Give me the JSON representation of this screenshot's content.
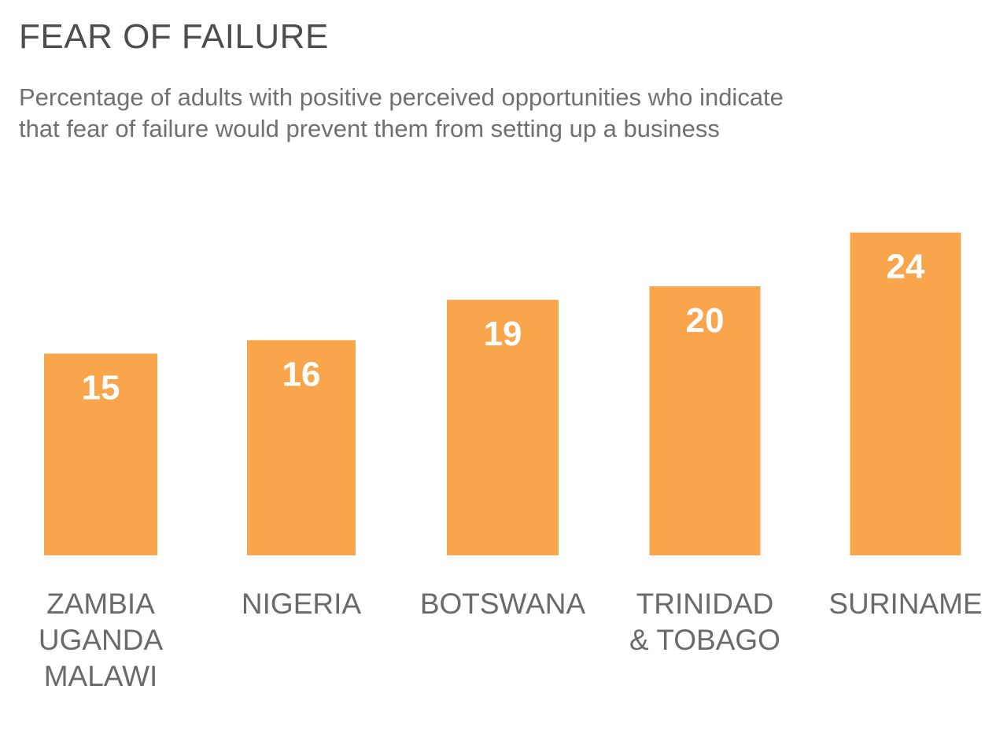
{
  "title": "FEAR OF FAILURE",
  "subtitle_lines": [
    "Percentage of adults with positive perceived opportunities who indicate",
    "that fear of failure would prevent them from setting up a business"
  ],
  "colors": {
    "bar": "#f8a54b",
    "title_text": "#4d4d4d",
    "subtitle_text": "#707070",
    "label_text": "#6a6a6a",
    "value_text": "#ffffff"
  },
  "chart_data": {
    "type": "bar",
    "title": "FEAR OF FAILURE",
    "subtitle": "Percentage of adults with positive perceived opportunities who indicate that fear of failure would prevent them from setting up a business",
    "categories": [
      [
        "ZAMBIA",
        "UGANDA",
        "MALAWI"
      ],
      [
        "NIGERIA"
      ],
      [
        "BOTSWANA"
      ],
      [
        "TRINIDAD",
        "& TOBAGO"
      ],
      [
        "SURINAME"
      ]
    ],
    "values": [
      15,
      16,
      19,
      20,
      24
    ],
    "data_labels": [
      "15",
      "16",
      "19",
      "20",
      "24"
    ],
    "xlabel": "",
    "ylabel": "",
    "grid": false,
    "legend": "none"
  }
}
